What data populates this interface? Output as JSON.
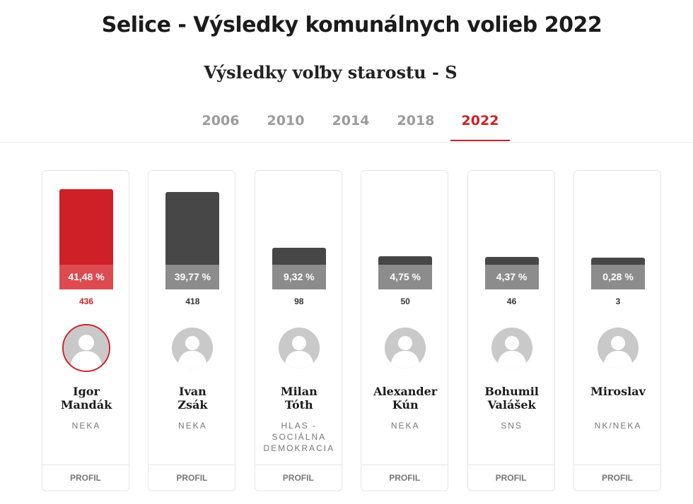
{
  "title": "Selice - Výsledky komunálnych volieb 2022",
  "subtitle": "Výsledky voľby starostu - S",
  "tabs": [
    {
      "label": "2006",
      "active": false
    },
    {
      "label": "2010",
      "active": false
    },
    {
      "label": "2014",
      "active": false
    },
    {
      "label": "2018",
      "active": false
    },
    {
      "label": "2022",
      "active": true
    }
  ],
  "colors": {
    "accent": "#cf2027",
    "bar": "#474747",
    "winner_bar": "#cf2027"
  },
  "profile_label": "PROFIL",
  "chart_data": {
    "type": "bar",
    "categories": [
      "Igor Mandák",
      "Ivan Zsák",
      "Milan Tóth",
      "Alexander Kún",
      "Bohumil Valášek",
      "Miroslav"
    ],
    "values": [
      41.48,
      39.77,
      9.32,
      4.75,
      4.37,
      0.28
    ],
    "unit": "%",
    "ylim": [
      0,
      41.48
    ],
    "candidates": [
      {
        "first": "Igor",
        "last": "Mandák",
        "party": "NEKA",
        "percent": 41.48,
        "percent_label": "41,48 %",
        "votes": "436",
        "winner": true,
        "avatar_icon": "person-avatar-icon"
      },
      {
        "first": "Ivan",
        "last": "Zsák",
        "party": "NEKA",
        "percent": 39.77,
        "percent_label": "39,77 %",
        "votes": "418",
        "winner": false,
        "avatar_icon": "person-avatar-icon"
      },
      {
        "first": "Milan",
        "last": "Tóth",
        "party": "HLAS - SOCIÁLNA DEMOKRACIA",
        "percent": 9.32,
        "percent_label": "9,32 %",
        "votes": "98",
        "winner": false,
        "avatar_icon": "person-avatar-icon"
      },
      {
        "first": "Alexander",
        "last": "Kún",
        "party": "NEKA",
        "percent": 4.75,
        "percent_label": "4,75 %",
        "votes": "50",
        "winner": false,
        "avatar_icon": "person-avatar-icon"
      },
      {
        "first": "Bohumil",
        "last": "Valášek",
        "party": "SNS",
        "percent": 4.37,
        "percent_label": "4,37 %",
        "votes": "46",
        "winner": false,
        "avatar_icon": "person-avatar-icon"
      },
      {
        "first": "Miroslav",
        "last": "",
        "party": "NK/NEKA",
        "percent": 0.28,
        "percent_label": "0,28 %",
        "votes": "3",
        "winner": false,
        "avatar_icon": "person-avatar-icon"
      }
    ]
  }
}
